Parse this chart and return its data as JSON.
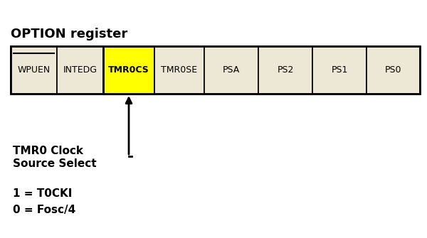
{
  "title": "OPTION register",
  "cells": [
    "WPUEN",
    "INTEDG",
    "TMR0CS",
    "TMR0SE",
    "PSA",
    "PS2",
    "PS1",
    "PS0"
  ],
  "highlighted_cell": 2,
  "highlight_color": "#FFFF00",
  "normal_color": "#EDE8D5",
  "border_color": "#000000",
  "overline_cells": [
    "WPUEN"
  ],
  "title_fontsize": 13,
  "cell_fontsize": 9,
  "label_fontsize": 11,
  "note_fontsize": 11,
  "label_line1": "TMR0 Clock",
  "label_line2": "Source Select",
  "note_line1": "1 = T0CKI",
  "note_line2": "0 = Fosc/4"
}
